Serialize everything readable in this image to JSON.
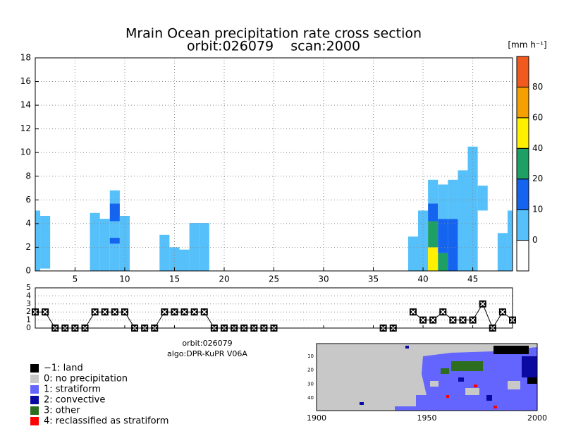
{
  "chart_data": [
    {
      "type": "cross-section",
      "title": "Mrain Ocean precipitation rate cross section",
      "subtitle": "orbit:026079    scan:2000",
      "xlim": [
        1,
        49
      ],
      "xticks": [
        5,
        10,
        15,
        20,
        25,
        30,
        35,
        40,
        45
      ],
      "ylim": [
        0,
        18
      ],
      "yticks": [
        0,
        2,
        4,
        6,
        8,
        10,
        12,
        14,
        16,
        18
      ],
      "grid": true,
      "colorbar": {
        "label": "[mm h⁻¹]",
        "levels": [
          0,
          10,
          20,
          40,
          60,
          80
        ],
        "colors": [
          "#ffffff",
          "#55c0fa",
          "#1464f0",
          "#1ea064",
          "#fff000",
          "#f5a000",
          "#f05a1e"
        ]
      },
      "columns": [
        {
          "x": 1,
          "layers": [
            {
              "bottom": 0,
              "top": 5.1,
              "rate": 3
            }
          ]
        },
        {
          "x": 2,
          "layers": [
            {
              "bottom": 0.2,
              "top": 4.65,
              "rate": 3
            }
          ]
        },
        {
          "x": 7,
          "layers": [
            {
              "bottom": 0,
              "top": 4.9,
              "rate": 3
            }
          ]
        },
        {
          "x": 8,
          "layers": [
            {
              "bottom": 0,
              "top": 4.4,
              "rate": 3
            }
          ]
        },
        {
          "x": 9,
          "layers": [
            {
              "bottom": 0,
              "top": 2.3,
              "rate": 3
            },
            {
              "bottom": 2.3,
              "top": 2.8,
              "rate": 15
            },
            {
              "bottom": 2.8,
              "top": 4.2,
              "rate": 3
            },
            {
              "bottom": 4.2,
              "top": 5.7,
              "rate": 15
            },
            {
              "bottom": 5.7,
              "top": 6.8,
              "rate": 3
            }
          ]
        },
        {
          "x": 10,
          "layers": [
            {
              "bottom": 0,
              "top": 4.65,
              "rate": 3
            }
          ]
        },
        {
          "x": 14,
          "layers": [
            {
              "bottom": 0,
              "top": 3.05,
              "rate": 3
            }
          ]
        },
        {
          "x": 15,
          "layers": [
            {
              "bottom": 0,
              "top": 2.0,
              "rate": 3
            }
          ]
        },
        {
          "x": 16,
          "layers": [
            {
              "bottom": 0,
              "top": 1.8,
              "rate": 3
            }
          ]
        },
        {
          "x": 17,
          "layers": [
            {
              "bottom": 0,
              "top": 4.05,
              "rate": 3
            }
          ]
        },
        {
          "x": 18,
          "layers": [
            {
              "bottom": 0,
              "top": 4.05,
              "rate": 3
            }
          ]
        },
        {
          "x": 39,
          "layers": [
            {
              "bottom": 0,
              "top": 2.9,
              "rate": 3
            }
          ]
        },
        {
          "x": 40,
          "layers": [
            {
              "bottom": 0,
              "top": 5.1,
              "rate": 3
            }
          ]
        },
        {
          "x": 41,
          "layers": [
            {
              "bottom": 0,
              "top": 2.0,
              "rate": 50
            },
            {
              "bottom": 2.0,
              "top": 4.2,
              "rate": 30
            },
            {
              "bottom": 4.2,
              "top": 5.7,
              "rate": 15
            },
            {
              "bottom": 5.7,
              "top": 7.7,
              "rate": 3
            }
          ]
        },
        {
          "x": 42,
          "layers": [
            {
              "bottom": 0,
              "top": 1.5,
              "rate": 30
            },
            {
              "bottom": 1.5,
              "top": 4.4,
              "rate": 15
            },
            {
              "bottom": 4.4,
              "top": 7.3,
              "rate": 3
            }
          ]
        },
        {
          "x": 43,
          "layers": [
            {
              "bottom": 0,
              "top": 4.4,
              "rate": 15
            },
            {
              "bottom": 4.4,
              "top": 7.7,
              "rate": 3
            }
          ]
        },
        {
          "x": 44,
          "layers": [
            {
              "bottom": 0,
              "top": 8.5,
              "rate": 3
            }
          ]
        },
        {
          "x": 45,
          "layers": [
            {
              "bottom": 0,
              "top": 10.5,
              "rate": 3
            }
          ]
        },
        {
          "x": 46,
          "layers": [
            {
              "bottom": 5.1,
              "top": 7.2,
              "rate": 3
            }
          ]
        },
        {
          "x": 48,
          "layers": [
            {
              "bottom": 0,
              "top": 3.2,
              "rate": 3
            }
          ]
        },
        {
          "x": 49,
          "layers": [
            {
              "bottom": 0,
              "top": 5.1,
              "rate": 3
            }
          ]
        }
      ]
    },
    {
      "type": "line",
      "xlim": [
        1,
        49
      ],
      "xticks": [
        5,
        10,
        15,
        20,
        25,
        30,
        35,
        40,
        45
      ],
      "ylim": [
        0,
        5
      ],
      "yticks": [
        0,
        1,
        2,
        3,
        4,
        5
      ],
      "grid": true,
      "color": "#000000",
      "x": [
        1,
        2,
        3,
        4,
        5,
        6,
        7,
        8,
        9,
        10,
        11,
        12,
        13,
        14,
        15,
        16,
        17,
        18,
        19,
        20,
        21,
        22,
        23,
        24,
        25,
        26,
        27,
        28,
        29,
        30,
        31,
        32,
        33,
        34,
        35,
        36,
        37,
        38,
        39,
        40,
        41,
        42,
        43,
        44,
        45,
        46,
        47,
        48,
        49
      ],
      "values": [
        2,
        2,
        0,
        0,
        0,
        0,
        2,
        2,
        2,
        2,
        0,
        0,
        0,
        2,
        2,
        2,
        2,
        2,
        0,
        0,
        0,
        0,
        0,
        0,
        0,
        null,
        null,
        null,
        null,
        null,
        null,
        null,
        null,
        null,
        null,
        0,
        0,
        null,
        2,
        1,
        1,
        2,
        1,
        1,
        1,
        3,
        0,
        2,
        1
      ]
    },
    {
      "type": "map",
      "xlim": [
        1900,
        2000
      ],
      "xticks": [
        1900,
        1950,
        2000
      ],
      "ylim": [
        1,
        49
      ],
      "yticks": [
        10,
        20,
        30,
        40
      ],
      "annotations": [
        "orbit:026079",
        "algo:DPR-KuPR V06A"
      ],
      "legend": [
        {
          "label": "−1: land",
          "color": "#000000"
        },
        {
          "label": "0: no precipitation",
          "color": "#c8c8c8"
        },
        {
          "label": "1: stratiform",
          "color": "#6464ff"
        },
        {
          "label": "2: convective",
          "color": "#0a0aa0"
        },
        {
          "label": "3: other",
          "color": "#2d6e1e"
        },
        {
          "label": "4: reclassified as stratiform",
          "color": "#ff0000"
        }
      ]
    }
  ]
}
